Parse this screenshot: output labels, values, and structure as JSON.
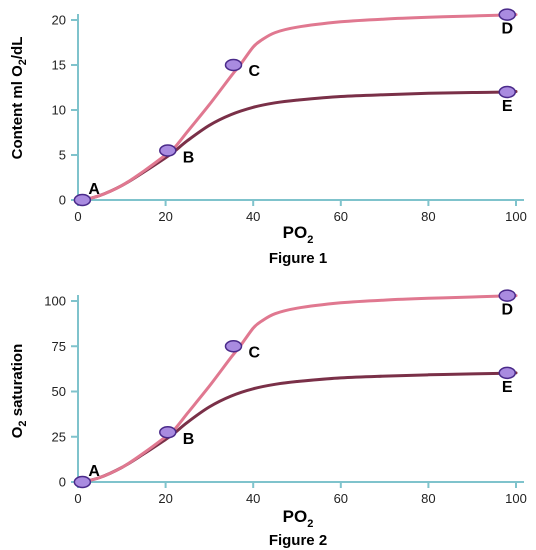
{
  "colors": {
    "axis": "#7fc3cc",
    "upper_curve": "#e07890",
    "lower_curve": "#7a3048",
    "marker_fill": "#a98be0",
    "marker_stroke": "#4a2a8a"
  },
  "chart_data": [
    {
      "type": "line",
      "caption": "Figure 1",
      "xlabel": "PO",
      "xlabel_sub": "2",
      "ylabel_main": "Content ml O",
      "ylabel_sub": "2",
      "ylabel_tail": "/dL",
      "xlim": [
        0,
        100
      ],
      "ylim": [
        0,
        20
      ],
      "xticks": [
        0,
        20,
        40,
        60,
        80,
        100
      ],
      "yticks": [
        0,
        5,
        10,
        15,
        20
      ],
      "xtick_labels": [
        "0",
        "20",
        "40",
        "60",
        "80",
        "100"
      ],
      "ytick_labels": [
        "0",
        "5",
        "10",
        "15",
        "20"
      ],
      "series": [
        {
          "key": "upper",
          "x": [
            1,
            5,
            10,
            15,
            20,
            22,
            25,
            30,
            35,
            37,
            40,
            42,
            45,
            50,
            60,
            70,
            80,
            90,
            98,
            100
          ],
          "y": [
            0,
            0.5,
            1.6,
            3.2,
            5.0,
            5.8,
            7.6,
            10.6,
            13.8,
            15.0,
            17.0,
            17.8,
            18.6,
            19.2,
            19.8,
            20.1,
            20.3,
            20.45,
            20.55,
            20.6
          ]
        },
        {
          "key": "lower",
          "x": [
            1,
            5,
            10,
            15,
            20,
            22,
            25,
            30,
            35,
            40,
            45,
            50,
            60,
            70,
            80,
            90,
            98,
            100
          ],
          "y": [
            0,
            0.5,
            1.6,
            3.1,
            4.7,
            5.4,
            6.6,
            8.3,
            9.5,
            10.3,
            10.8,
            11.1,
            11.5,
            11.7,
            11.85,
            11.95,
            12.0,
            12.05
          ]
        }
      ],
      "points": [
        {
          "label": "A",
          "x": 1,
          "y": 0
        },
        {
          "label": "B",
          "x": 20.5,
          "y": 5.5
        },
        {
          "label": "C",
          "x": 35.5,
          "y": 15.0
        },
        {
          "label": "D",
          "x": 98,
          "y": 20.6
        },
        {
          "label": "E",
          "x": 98,
          "y": 12.0
        }
      ]
    },
    {
      "type": "line",
      "caption": "Figure 2",
      "xlabel": "PO",
      "xlabel_sub": "2",
      "ylabel_main": "O",
      "ylabel_sub": "2",
      "ylabel_tail": " saturation",
      "xlim": [
        0,
        100
      ],
      "ylim": [
        0,
        100
      ],
      "xticks": [
        0,
        20,
        40,
        60,
        80,
        100
      ],
      "yticks": [
        0,
        25,
        50,
        75,
        100
      ],
      "xtick_labels": [
        "0",
        "20",
        "40",
        "60",
        "80",
        "100"
      ],
      "ytick_labels": [
        "0",
        "25",
        "50",
        "75",
        "100"
      ],
      "series": [
        {
          "key": "upper",
          "x": [
            1,
            5,
            10,
            15,
            20,
            22,
            25,
            30,
            35,
            37,
            40,
            42,
            45,
            50,
            60,
            70,
            80,
            90,
            98,
            100
          ],
          "y": [
            0,
            2.5,
            8,
            16,
            25,
            29,
            38,
            53,
            69,
            75,
            85,
            89,
            93,
            96,
            99,
            100.5,
            101.5,
            102.2,
            102.8,
            103
          ]
        },
        {
          "key": "lower",
          "x": [
            1,
            5,
            10,
            15,
            20,
            22,
            25,
            30,
            35,
            40,
            45,
            50,
            60,
            70,
            80,
            90,
            98,
            100
          ],
          "y": [
            0,
            2.5,
            8,
            15.5,
            23.5,
            27,
            33,
            41.5,
            47.5,
            51.5,
            54,
            55.5,
            57.5,
            58.5,
            59.2,
            59.7,
            60.1,
            60.3
          ]
        }
      ],
      "points": [
        {
          "label": "A",
          "x": 1,
          "y": 0
        },
        {
          "label": "B",
          "x": 20.5,
          "y": 27.5
        },
        {
          "label": "C",
          "x": 35.5,
          "y": 75
        },
        {
          "label": "D",
          "x": 98,
          "y": 103
        },
        {
          "label": "E",
          "x": 98,
          "y": 60.3
        }
      ]
    }
  ]
}
